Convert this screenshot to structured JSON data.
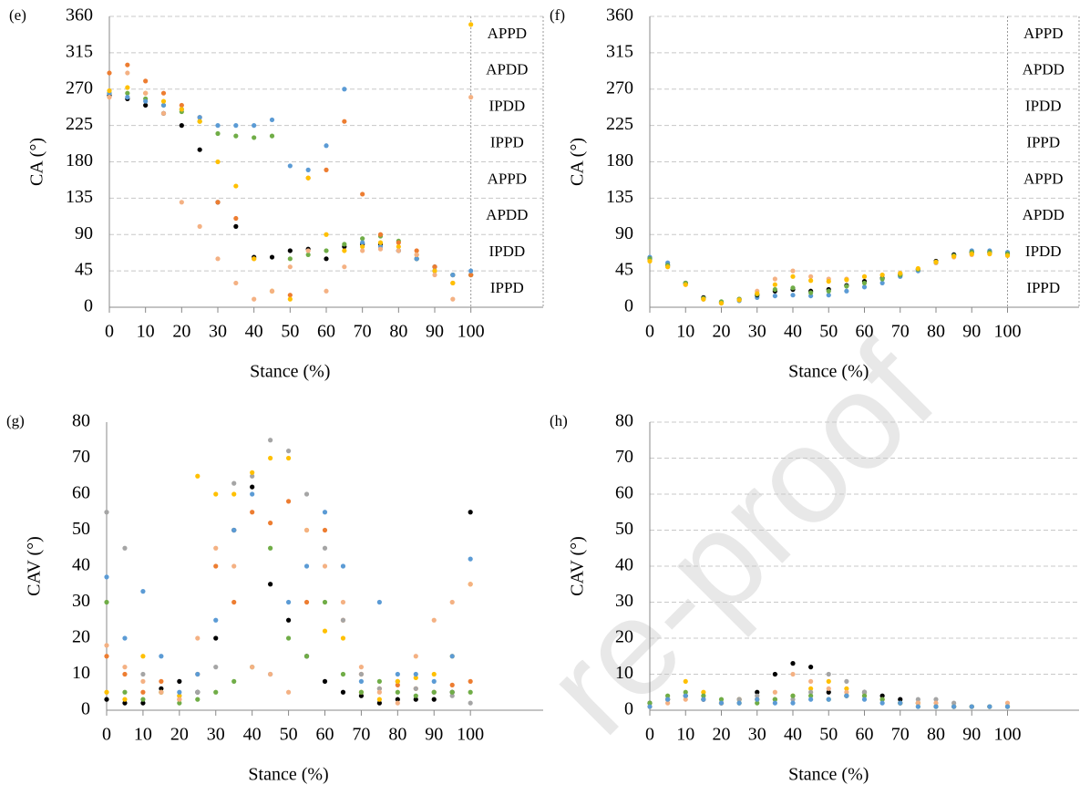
{
  "chart_data": [
    {
      "type": "scatter",
      "panel_label": "(e)",
      "y_label": "CA (°)",
      "x_label": "Stance (%)",
      "x": [
        0,
        5,
        10,
        15,
        20,
        25,
        30,
        35,
        40,
        45,
        50,
        55,
        60,
        65,
        70,
        75,
        80,
        85,
        90,
        95,
        100
      ],
      "xlim": [
        0,
        120
      ],
      "xticks": [
        0,
        10,
        20,
        30,
        40,
        50,
        60,
        70,
        80,
        90,
        100
      ],
      "ylim": [
        0,
        360
      ],
      "yticks": [
        0,
        45,
        90,
        135,
        180,
        225,
        270,
        315,
        360
      ],
      "grid": true,
      "annotations": [
        "APPD",
        "APDD",
        "IPDD",
        "IPPD",
        "APPD",
        "APDD",
        "IPDD",
        "IPPD"
      ],
      "series": [
        {
          "color": "#000000",
          "values": [
            262,
            258,
            250,
            240,
            225,
            195,
            130,
            100,
            62,
            62,
            70,
            72,
            60,
            75,
            78,
            78,
            70,
            60,
            50,
            40,
            40
          ]
        },
        {
          "color": "#70ad47",
          "values": [
            265,
            265,
            258,
            250,
            242,
            230,
            215,
            212,
            210,
            212,
            60,
            65,
            70,
            78,
            85,
            88,
            82,
            60,
            45,
            40,
            40
          ]
        },
        {
          "color": "#ed7d31",
          "values": [
            290,
            300,
            280,
            265,
            250,
            235,
            130,
            110,
            60,
            20,
            15,
            160,
            170,
            230,
            140,
            90,
            80,
            70,
            50,
            30,
            40
          ]
        },
        {
          "color": "#5b9bd5",
          "values": [
            265,
            260,
            255,
            250,
            245,
            235,
            225,
            225,
            225,
            232,
            175,
            170,
            200,
            270,
            80,
            75,
            70,
            60,
            45,
            40,
            45
          ]
        },
        {
          "color": "#ffc000",
          "values": [
            268,
            272,
            265,
            255,
            245,
            230,
            180,
            150,
            60,
            20,
            10,
            160,
            90,
            70,
            75,
            80,
            75,
            65,
            45,
            30,
            350
          ]
        },
        {
          "color": "#f4b183",
          "values": [
            260,
            290,
            265,
            240,
            130,
            100,
            60,
            30,
            10,
            20,
            50,
            70,
            20,
            50,
            70,
            72,
            70,
            65,
            40,
            10,
            260
          ]
        }
      ]
    },
    {
      "type": "scatter",
      "panel_label": "(f)",
      "y_label": "CA (°)",
      "x_label": "Stance (%)",
      "x": [
        0,
        5,
        10,
        15,
        20,
        25,
        30,
        35,
        40,
        45,
        50,
        55,
        60,
        65,
        70,
        75,
        80,
        85,
        90,
        95,
        100
      ],
      "xlim": [
        0,
        120
      ],
      "xticks": [
        0,
        10,
        20,
        30,
        40,
        50,
        60,
        70,
        80,
        90,
        100
      ],
      "ylim": [
        0,
        360
      ],
      "yticks": [
        0,
        45,
        90,
        135,
        180,
        225,
        270,
        315,
        360
      ],
      "grid": true,
      "annotations": [
        "APPD",
        "APDD",
        "IPDD",
        "IPPD",
        "APPD",
        "APDD",
        "IPDD",
        "IPPD"
      ],
      "series": [
        {
          "color": "#5b9bd5",
          "values": [
            62,
            55,
            30,
            10,
            5,
            8,
            12,
            14,
            15,
            14,
            15,
            20,
            25,
            30,
            38,
            45,
            55,
            65,
            70,
            70,
            68
          ]
        },
        {
          "color": "#000000",
          "values": [
            60,
            52,
            30,
            12,
            6,
            10,
            15,
            20,
            22,
            20,
            22,
            27,
            32,
            36,
            40,
            47,
            57,
            65,
            68,
            68,
            66
          ]
        },
        {
          "color": "#f4b183",
          "values": [
            58,
            50,
            28,
            10,
            5,
            10,
            20,
            35,
            45,
            38,
            35,
            35,
            38,
            40,
            42,
            47,
            55,
            62,
            65,
            66,
            64
          ]
        },
        {
          "color": "#70ad47",
          "values": [
            60,
            52,
            30,
            11,
            7,
            10,
            16,
            22,
            24,
            18,
            20,
            26,
            30,
            35,
            40,
            47,
            56,
            64,
            68,
            68,
            66
          ]
        },
        {
          "color": "#ffc000",
          "values": [
            57,
            50,
            28,
            10,
            5,
            9,
            17,
            28,
            38,
            33,
            32,
            34,
            38,
            40,
            42,
            48,
            56,
            63,
            66,
            66,
            64
          ]
        }
      ]
    },
    {
      "type": "scatter",
      "panel_label": "(g)",
      "y_label": "CAV (°)",
      "x_label": "Stance (%)",
      "x": [
        0,
        5,
        10,
        15,
        20,
        25,
        30,
        35,
        40,
        45,
        50,
        55,
        60,
        65,
        70,
        75,
        80,
        85,
        90,
        95,
        100
      ],
      "xlim": [
        0,
        120
      ],
      "xticks": [
        0,
        10,
        20,
        30,
        40,
        50,
        60,
        70,
        80,
        90,
        100
      ],
      "ylim": [
        0,
        80
      ],
      "yticks": [
        0,
        10,
        20,
        30,
        40,
        50,
        60,
        70,
        80
      ],
      "grid": false,
      "series": [
        {
          "color": "#000000",
          "values": [
            3,
            2,
            2,
            6,
            8,
            5,
            20,
            50,
            62,
            35,
            25,
            15,
            8,
            5,
            4,
            2,
            3,
            3,
            3,
            5,
            55
          ]
        },
        {
          "color": "#ed7d31",
          "values": [
            15,
            10,
            5,
            8,
            3,
            10,
            40,
            30,
            55,
            52,
            58,
            30,
            50,
            25,
            10,
            6,
            7,
            6,
            5,
            7,
            8
          ]
        },
        {
          "color": "#a5a5a5",
          "values": [
            55,
            45,
            10,
            5,
            4,
            5,
            12,
            63,
            65,
            75,
            72,
            60,
            45,
            25,
            10,
            6,
            8,
            6,
            5,
            4,
            2
          ]
        },
        {
          "color": "#ffc000",
          "values": [
            5,
            3,
            15,
            5,
            4,
            65,
            60,
            60,
            66,
            70,
            70,
            50,
            22,
            20,
            5,
            3,
            8,
            9,
            10,
            15,
            35
          ]
        },
        {
          "color": "#5b9bd5",
          "values": [
            37,
            20,
            33,
            15,
            5,
            10,
            25,
            50,
            60,
            10,
            30,
            40,
            55,
            40,
            8,
            30,
            10,
            10,
            8,
            15,
            42
          ]
        },
        {
          "color": "#70ad47",
          "values": [
            30,
            5,
            3,
            5,
            2,
            3,
            5,
            8,
            12,
            45,
            20,
            15,
            30,
            10,
            5,
            8,
            5,
            4,
            5,
            5,
            5
          ]
        },
        {
          "color": "#f4b183",
          "values": [
            18,
            12,
            8,
            5,
            3,
            20,
            45,
            40,
            12,
            10,
            5,
            50,
            40,
            30,
            12,
            5,
            2,
            15,
            25,
            30,
            35
          ]
        }
      ]
    },
    {
      "type": "scatter",
      "panel_label": "(h)",
      "y_label": "CAV (°)",
      "x_label": "Stance (%)",
      "x": [
        0,
        5,
        10,
        15,
        20,
        25,
        30,
        35,
        40,
        45,
        50,
        55,
        60,
        65,
        70,
        75,
        80,
        85,
        90,
        95,
        100
      ],
      "xlim": [
        0,
        120
      ],
      "xticks": [
        0,
        10,
        20,
        30,
        40,
        50,
        60,
        70,
        80,
        90,
        100
      ],
      "ylim": [
        0,
        80
      ],
      "yticks": [
        0,
        10,
        20,
        30,
        40,
        50,
        60,
        70,
        80
      ],
      "grid": true,
      "series": [
        {
          "color": "#000000",
          "values": [
            2,
            3,
            4,
            3,
            2,
            3,
            5,
            10,
            13,
            12,
            5,
            4,
            5,
            4,
            3,
            2,
            1,
            1,
            1,
            1,
            1
          ]
        },
        {
          "color": "#ffc000",
          "values": [
            1,
            3,
            8,
            5,
            2,
            3,
            3,
            3,
            4,
            6,
            8,
            6,
            4,
            3,
            2,
            2,
            1,
            1,
            1,
            1,
            1
          ]
        },
        {
          "color": "#a5a5a5",
          "values": [
            2,
            3,
            4,
            3,
            2,
            3,
            4,
            3,
            3,
            5,
            10,
            8,
            5,
            3,
            2,
            3,
            3,
            2,
            1,
            1,
            1
          ]
        },
        {
          "color": "#f4b183",
          "values": [
            1,
            2,
            3,
            3,
            2,
            2,
            3,
            5,
            10,
            8,
            6,
            5,
            4,
            3,
            2,
            2,
            2,
            1,
            1,
            1,
            2
          ]
        },
        {
          "color": "#70ad47",
          "values": [
            2,
            4,
            5,
            4,
            3,
            2,
            2,
            3,
            4,
            4,
            3,
            4,
            4,
            3,
            2,
            1,
            1,
            1,
            1,
            1,
            1
          ]
        },
        {
          "color": "#5b9bd5",
          "values": [
            1,
            3,
            4,
            3,
            2,
            2,
            3,
            2,
            2,
            3,
            3,
            4,
            3,
            2,
            2,
            1,
            1,
            1,
            1,
            1,
            1
          ]
        }
      ]
    }
  ],
  "watermark": "re-proof"
}
